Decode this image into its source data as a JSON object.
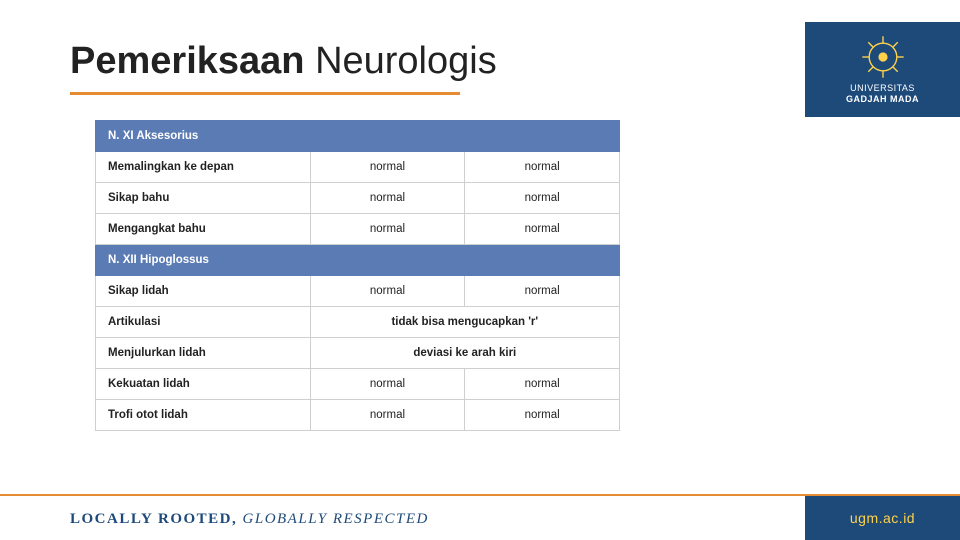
{
  "title_bold": "Pemeriksaan",
  "title_light": "Neurologis",
  "university": {
    "line1": "UNIVERSITAS",
    "line2": "GADJAH MADA"
  },
  "footer": {
    "left_a": "LOCALLY ROOTED, ",
    "left_b": "GLOBALLY RESPECTED",
    "right": "ugm.ac.id"
  },
  "sections": [
    {
      "header": "N. XI Aksesorius",
      "rows": [
        {
          "label": "Memalingkan ke depan",
          "left": "normal",
          "right": "normal"
        },
        {
          "label": "Sikap bahu",
          "left": "normal",
          "right": "normal"
        },
        {
          "label": "Mengangkat bahu",
          "left": "normal",
          "right": "normal"
        }
      ]
    },
    {
      "header": "N. XII Hipoglossus",
      "rows": [
        {
          "label": "Sikap lidah",
          "left": "normal",
          "right": "normal"
        },
        {
          "label": "Artikulasi",
          "merged": "tidak bisa mengucapkan 'r'"
        },
        {
          "label": "Menjulurkan lidah",
          "merged": "deviasi ke arah kiri"
        },
        {
          "label": "Kekuatan lidah",
          "left": "normal",
          "right": "normal"
        },
        {
          "label": "Trofi otot lidah",
          "left": "normal",
          "right": "normal"
        }
      ]
    }
  ],
  "colors": {
    "accent_orange": "#e58b34",
    "brand_navy": "#1e4a7a",
    "brand_gold": "#ffd24a",
    "section_blue": "#5b7bb4"
  }
}
